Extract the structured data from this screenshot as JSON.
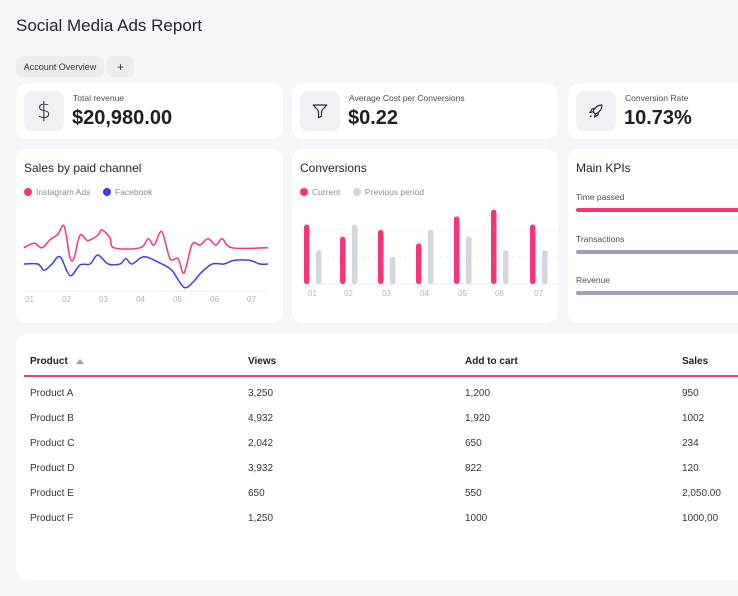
{
  "header": {
    "title": "Social Media Ads Report",
    "tabs": [
      {
        "label": "Account Overview"
      },
      {
        "label": "+"
      }
    ]
  },
  "stats": [
    {
      "icon": "dollar-icon",
      "label": "Total revenue",
      "value": "$20,980.00"
    },
    {
      "icon": "filter-icon",
      "label": "Average Cost per Conversions",
      "value": "$0.22"
    },
    {
      "icon": "rocket-icon",
      "label": "Conversion Rate",
      "value": "10.73%"
    }
  ],
  "colors": {
    "accent": "#f5347a",
    "secondary": "#3d3df0",
    "previous": "#d3d6dd",
    "kpi_gray": "#9aa1b0"
  },
  "chart_data": [
    {
      "type": "line",
      "title": "Sales by paid channel",
      "categories": [
        "01",
        "02",
        "03",
        "04",
        "05",
        "06",
        "07"
      ],
      "ylim": [
        0,
        100
      ],
      "series": [
        {
          "name": "Instagram Ads",
          "color": "#f5347a",
          "points": [
            [
              0.86,
              48
            ],
            [
              1.14,
              53
            ],
            [
              1.35,
              48
            ],
            [
              1.57,
              57
            ],
            [
              1.78,
              63
            ],
            [
              1.95,
              72
            ],
            [
              2.11,
              37
            ],
            [
              2.22,
              37
            ],
            [
              2.38,
              62
            ],
            [
              2.59,
              56
            ],
            [
              2.86,
              62
            ],
            [
              2.97,
              68
            ],
            [
              3.19,
              59
            ],
            [
              3.3,
              48
            ],
            [
              4.0,
              48
            ],
            [
              4.22,
              58
            ],
            [
              4.38,
              51
            ],
            [
              4.59,
              66
            ],
            [
              4.81,
              36
            ],
            [
              5.03,
              36
            ],
            [
              5.19,
              20
            ],
            [
              5.41,
              52
            ],
            [
              5.62,
              51
            ],
            [
              5.84,
              58
            ],
            [
              6.05,
              51
            ],
            [
              6.22,
              58
            ],
            [
              6.49,
              48
            ],
            [
              7.46,
              48
            ]
          ]
        },
        {
          "name": "Facebook",
          "color": "#3d3df0",
          "points": [
            [
              0.86,
              30
            ],
            [
              1.24,
              30
            ],
            [
              1.41,
              23
            ],
            [
              1.62,
              30
            ],
            [
              1.84,
              38
            ],
            [
              2.11,
              17
            ],
            [
              2.38,
              29
            ],
            [
              2.65,
              30
            ],
            [
              2.86,
              40
            ],
            [
              3.14,
              30
            ],
            [
              3.46,
              30
            ],
            [
              3.62,
              36
            ],
            [
              3.78,
              30
            ],
            [
              4.11,
              38
            ],
            [
              4.54,
              31
            ],
            [
              4.86,
              23
            ],
            [
              5.19,
              4
            ],
            [
              5.46,
              11
            ],
            [
              5.62,
              19
            ],
            [
              5.95,
              30
            ],
            [
              6.27,
              30
            ],
            [
              6.54,
              34
            ],
            [
              6.97,
              34
            ],
            [
              7.24,
              30
            ],
            [
              7.46,
              30
            ]
          ]
        }
      ]
    },
    {
      "type": "bar",
      "title": "Conversions",
      "categories": [
        "01",
        "02",
        "03",
        "04",
        "05",
        "06",
        "07"
      ],
      "ylim": [
        0,
        30
      ],
      "grid": true,
      "series": [
        {
          "name": "Current",
          "color": "#f5347a",
          "values": [
            22,
            17.5,
            20,
            15,
            25,
            27.5,
            22
          ]
        },
        {
          "name": "Previous period",
          "color": "#d3d6dd",
          "values": [
            12.5,
            22,
            10,
            20,
            17.5,
            12.5,
            12.5
          ]
        }
      ]
    }
  ],
  "kpis": {
    "title": "Main KPIs",
    "items": [
      {
        "label": "Time passed",
        "color": "#f5347a"
      },
      {
        "label": "Transactions",
        "color": "#9aa1b0"
      },
      {
        "label": "Revenue",
        "color": "#9aa1b0"
      }
    ]
  },
  "table": {
    "columns": [
      "Product",
      "Views",
      "Add to cart",
      "Sales"
    ],
    "sort_icon": "sort-up-icon",
    "rows": [
      [
        "Product A",
        "3,250",
        "1,200",
        "950"
      ],
      [
        "Product B",
        "4,932",
        "1,920",
        "1002"
      ],
      [
        "Product C",
        "2,042",
        "650",
        "234"
      ],
      [
        "Product D",
        "3,932",
        "822",
        "120"
      ],
      [
        "Product E",
        "650",
        "550",
        "2,050.00"
      ],
      [
        "Product F",
        "1,250",
        "1000",
        "1000,00"
      ]
    ]
  }
}
